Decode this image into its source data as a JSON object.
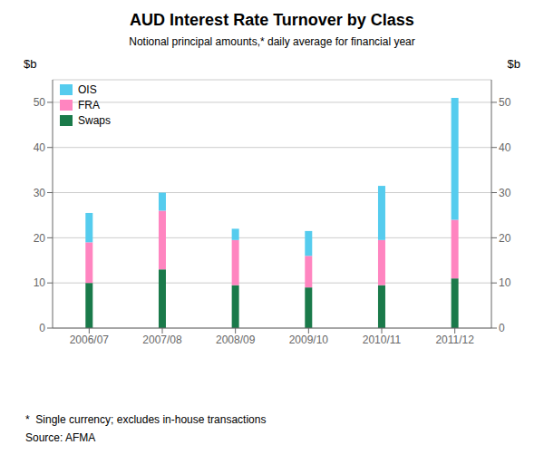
{
  "chart_data": {
    "type": "bar",
    "title": "AUD Interest Rate Turnover by Class",
    "subtitle": "Notional principal amounts,* daily average for financial year",
    "ylabel": "$b",
    "y2label": "$b",
    "categories": [
      "2006/07",
      "2007/08",
      "2008/09",
      "2009/10",
      "2010/11",
      "2011/12"
    ],
    "series": [
      {
        "name": "Swaps",
        "color": "#1a7a4a",
        "values": [
          10.0,
          13.0,
          9.5,
          9.0,
          9.5,
          11.0
        ]
      },
      {
        "name": "FRA",
        "color": "#ff85c0",
        "values": [
          9.0,
          13.0,
          10.0,
          7.0,
          10.0,
          13.0
        ]
      },
      {
        "name": "OIS",
        "color": "#55ccee",
        "values": [
          6.5,
          4.0,
          2.5,
          5.5,
          12.0,
          27.0
        ]
      }
    ],
    "stacked": true,
    "ylim": [
      0,
      55
    ],
    "yticks": [
      0,
      10,
      20,
      30,
      40,
      50
    ],
    "y2lim": [
      0,
      55
    ],
    "y2ticks": [
      0,
      10,
      20,
      30,
      40,
      50
    ],
    "grid": true,
    "legend": "upper left",
    "annotations": [
      "*  Single currency; excludes in-house transactions",
      "Source: AFMA"
    ]
  }
}
